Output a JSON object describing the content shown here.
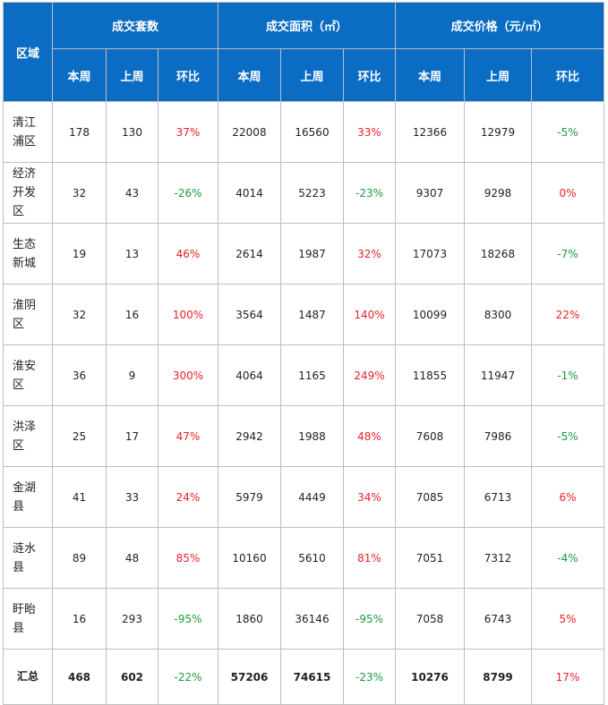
{
  "header": {
    "region": "区域",
    "groups": [
      "成交套数",
      "成交面积（㎡）",
      "成交价格（元/㎡）"
    ],
    "sub": [
      "本周",
      "上周",
      "环比"
    ]
  },
  "rows": [
    {
      "region": [
        "清江",
        "浦区"
      ],
      "n_cur": "178",
      "n_prev": "130",
      "n_chg": "37%",
      "a_cur": "22008",
      "a_prev": "16560",
      "a_chg": "33%",
      "p_cur": "12366",
      "p_prev": "12979",
      "p_chg": "-5%"
    },
    {
      "region": [
        "经济",
        "开发",
        "区"
      ],
      "n_cur": "32",
      "n_prev": "43",
      "n_chg": "-26%",
      "a_cur": "4014",
      "a_prev": "5223",
      "a_chg": "-23%",
      "p_cur": "9307",
      "p_prev": "9298",
      "p_chg": "0%"
    },
    {
      "region": [
        "生态",
        "新城"
      ],
      "n_cur": "19",
      "n_prev": "13",
      "n_chg": "46%",
      "a_cur": "2614",
      "a_prev": "1987",
      "a_chg": "32%",
      "p_cur": "17073",
      "p_prev": "18268",
      "p_chg": "-7%"
    },
    {
      "region": [
        "淮阴",
        "区"
      ],
      "n_cur": "32",
      "n_prev": "16",
      "n_chg": "100%",
      "a_cur": "3564",
      "a_prev": "1487",
      "a_chg": "140%",
      "p_cur": "10099",
      "p_prev": "8300",
      "p_chg": "22%"
    },
    {
      "region": [
        "淮安",
        "区"
      ],
      "n_cur": "36",
      "n_prev": "9",
      "n_chg": "300%",
      "a_cur": "4064",
      "a_prev": "1165",
      "a_chg": "249%",
      "p_cur": "11855",
      "p_prev": "11947",
      "p_chg": "-1%"
    },
    {
      "region": [
        "洪泽",
        "区"
      ],
      "n_cur": "25",
      "n_prev": "17",
      "n_chg": "47%",
      "a_cur": "2942",
      "a_prev": "1988",
      "a_chg": "48%",
      "p_cur": "7608",
      "p_prev": "7986",
      "p_chg": "-5%"
    },
    {
      "region": [
        "金湖",
        "县"
      ],
      "n_cur": "41",
      "n_prev": "33",
      "n_chg": "24%",
      "a_cur": "5979",
      "a_prev": "4449",
      "a_chg": "34%",
      "p_cur": "7085",
      "p_prev": "6713",
      "p_chg": "6%"
    },
    {
      "region": [
        "涟水",
        "县"
      ],
      "n_cur": "89",
      "n_prev": "48",
      "n_chg": "85%",
      "a_cur": "10160",
      "a_prev": "5610",
      "a_chg": "81%",
      "p_cur": "7051",
      "p_prev": "7312",
      "p_chg": "-4%"
    },
    {
      "region": [
        "盱眙",
        "县"
      ],
      "n_cur": "16",
      "n_prev": "293",
      "n_chg": "-95%",
      "a_cur": "1860",
      "a_prev": "36146",
      "a_chg": "-95%",
      "p_cur": "7058",
      "p_prev": "6743",
      "p_chg": "5%"
    }
  ],
  "total": {
    "region": "汇总",
    "n_cur": "468",
    "n_prev": "602",
    "n_chg": "-22%",
    "a_cur": "57206",
    "a_prev": "74615",
    "a_chg": "-23%",
    "p_cur": "10276",
    "p_prev": "8799",
    "p_chg": "17%"
  },
  "colors": {
    "header_bg": "#0a6cc3",
    "increase": "#e8212a",
    "decrease": "#1a9c3b"
  }
}
